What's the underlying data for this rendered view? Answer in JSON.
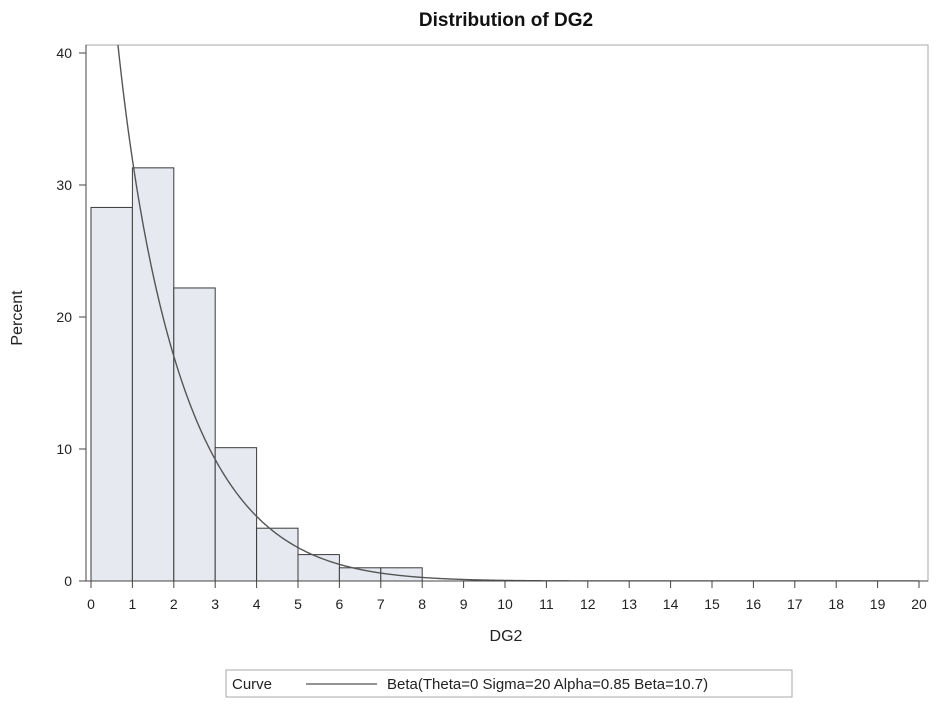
{
  "chart_data": {
    "type": "bar",
    "title": "Distribution of DG2",
    "xlabel": "DG2",
    "ylabel": "Percent",
    "xlim": [
      0,
      20
    ],
    "ylim": [
      0,
      40
    ],
    "xticks": [
      0,
      1,
      2,
      3,
      4,
      5,
      6,
      7,
      8,
      9,
      10,
      11,
      12,
      13,
      14,
      15,
      16,
      17,
      18,
      19,
      20
    ],
    "yticks": [
      0,
      10,
      20,
      30,
      40
    ],
    "bins": [
      {
        "start": 0,
        "end": 1,
        "value": 28.3
      },
      {
        "start": 1,
        "end": 2,
        "value": 31.3
      },
      {
        "start": 2,
        "end": 3,
        "value": 22.2
      },
      {
        "start": 3,
        "end": 4,
        "value": 10.1
      },
      {
        "start": 4,
        "end": 5,
        "value": 4.0
      },
      {
        "start": 5,
        "end": 6,
        "value": 2.0
      },
      {
        "start": 6,
        "end": 7,
        "value": 1.0
      },
      {
        "start": 7,
        "end": 8,
        "value": 1.0
      },
      {
        "start": 8,
        "end": 9,
        "value": 0
      },
      {
        "start": 9,
        "end": 10,
        "value": 0
      },
      {
        "start": 10,
        "end": 11,
        "value": 0
      },
      {
        "start": 11,
        "end": 12,
        "value": 0
      },
      {
        "start": 12,
        "end": 13,
        "value": 0
      },
      {
        "start": 13,
        "end": 14,
        "value": 0
      },
      {
        "start": 14,
        "end": 15,
        "value": 0
      },
      {
        "start": 15,
        "end": 16,
        "value": 0
      },
      {
        "start": 16,
        "end": 17,
        "value": 0
      },
      {
        "start": 17,
        "end": 18,
        "value": 0
      },
      {
        "start": 18,
        "end": 19,
        "value": 0
      },
      {
        "start": 19,
        "end": 20,
        "value": 0
      }
    ],
    "curve": {
      "name": "Beta(Theta=0 Sigma=20 Alpha=0.85 Beta=10.7)",
      "distribution": "beta",
      "theta": 0,
      "sigma": 20,
      "alpha": 0.85,
      "beta": 10.7,
      "bin_width": 1
    },
    "legend": {
      "title": "Curve",
      "label": "Beta(Theta=0 Sigma=20 Alpha=0.85 Beta=10.7)",
      "placement": "bottom"
    },
    "grid": false,
    "colors": {
      "bar_fill": "#e6e9f0",
      "bar_stroke": "#3a3a3a",
      "curve": "#555555",
      "frame": "#a8a8a8"
    }
  }
}
